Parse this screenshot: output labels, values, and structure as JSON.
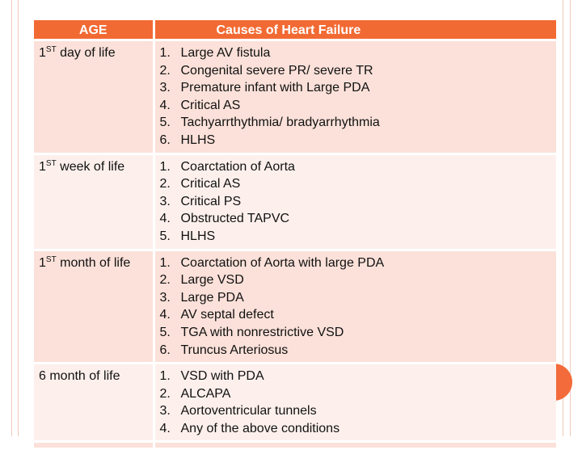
{
  "table": {
    "headers": {
      "age": "AGE",
      "causes": "Causes of Heart Failure"
    },
    "rows": [
      {
        "age_prefix": "1",
        "age_sup": "ST",
        "age_suffix": " day of life",
        "causes": [
          {
            "n": "1.",
            "text": "Large AV fistula"
          },
          {
            "n": "2.",
            "text": "Congenital severe PR/ severe TR"
          },
          {
            "n": "3.",
            "text": "Premature infant with Large PDA"
          },
          {
            "n": "4.",
            "text": "Critical AS"
          },
          {
            "n": "5.",
            "text": "Tachyarrthythmia/ bradyarrhythmia"
          },
          {
            "n": "6.",
            "text": "HLHS"
          }
        ]
      },
      {
        "age_prefix": "1",
        "age_sup": "ST",
        "age_suffix": " week of life",
        "causes": [
          {
            "n": "1.",
            "text": "Coarctation of Aorta"
          },
          {
            "n": "2.",
            "text": "Critical AS"
          },
          {
            "n": "3.",
            "text": "Critical PS"
          },
          {
            "n": "4.",
            "text": "Obstructed TAPVC"
          },
          {
            "n": "5.",
            "text": "HLHS"
          }
        ]
      },
      {
        "age_prefix": "1",
        "age_sup": "ST",
        "age_suffix": " month of life",
        "causes": [
          {
            "n": "1.",
            "text": "Coarctation of Aorta with large PDA"
          },
          {
            "n": "2.",
            "text": "Large VSD"
          },
          {
            "n": "3.",
            "text": "Large PDA"
          },
          {
            "n": "4.",
            "text": "AV septal defect"
          },
          {
            "n": "5.",
            "text": "TGA with nonrestrictive VSD"
          },
          {
            "n": "6.",
            "text": "Truncus Arteriosus"
          }
        ]
      },
      {
        "age_prefix": "6 month of life",
        "age_sup": "",
        "age_suffix": "",
        "causes": [
          {
            "n": "1.",
            "text": "VSD with PDA"
          },
          {
            "n": "2.",
            "text": "ALCAPA"
          },
          {
            "n": "3.",
            "text": "Aortoventricular tunnels"
          },
          {
            "n": "4.",
            "text": "Any of the above conditions"
          }
        ]
      }
    ]
  },
  "colors": {
    "header_bg": "#f26a33",
    "row_dark": "#fbe1d9",
    "row_light": "#fdf0ec",
    "accent": "#f36b3a",
    "frame_line": "#f2c9b8"
  }
}
